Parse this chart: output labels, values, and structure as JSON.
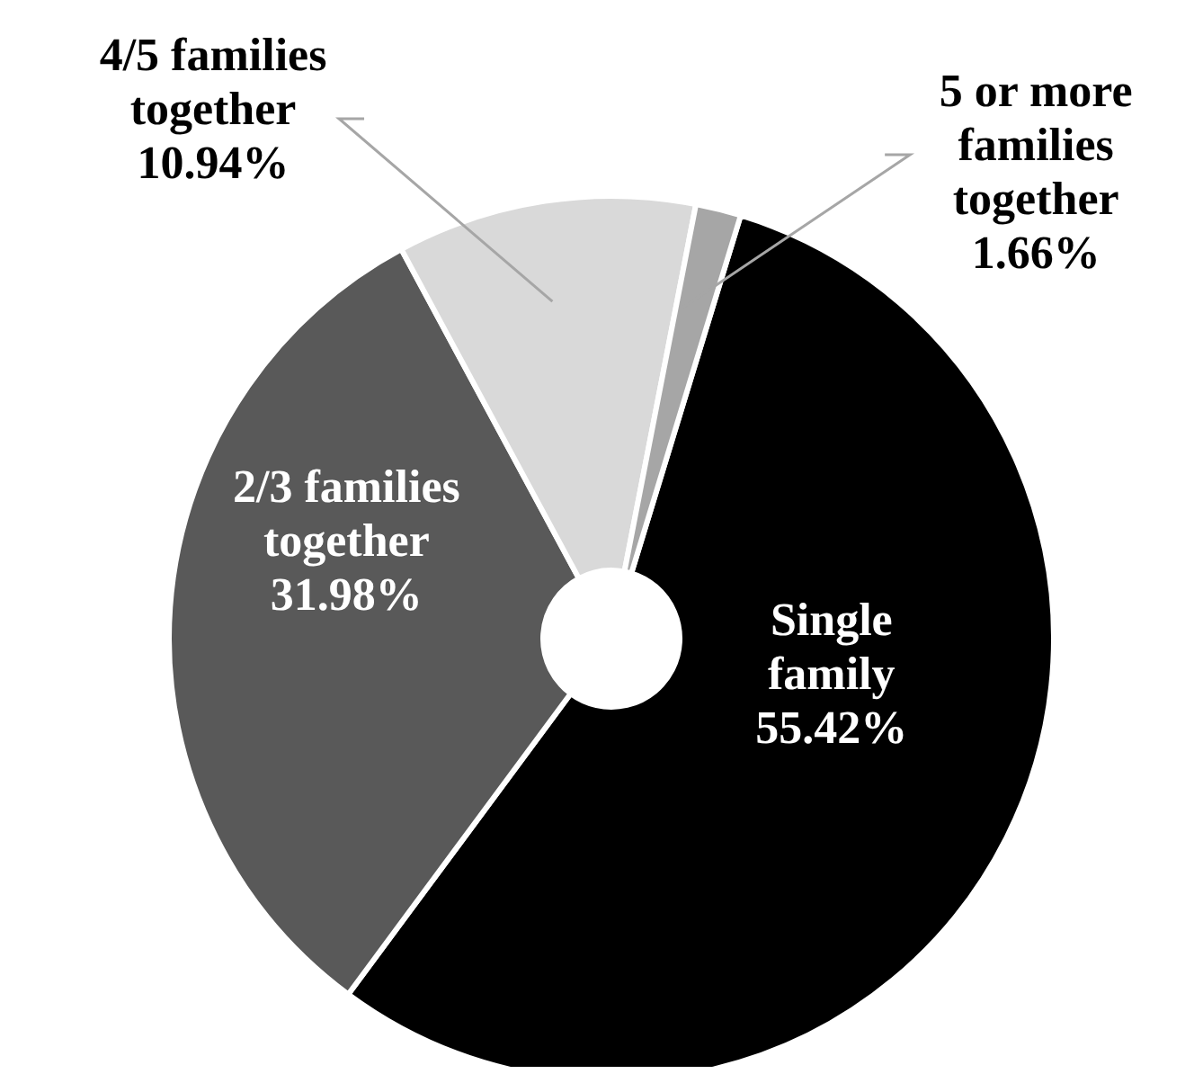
{
  "chart_data": {
    "type": "donut",
    "categories": [
      "Single family",
      "2/3 families together",
      "4/5 families together",
      "5 or more families together"
    ],
    "values": [
      55.42,
      31.98,
      10.94,
      1.66
    ],
    "value_labels": [
      "55.42%",
      "31.98%",
      "10.94%",
      "1.66%"
    ],
    "colors": [
      "#000000",
      "#595959",
      "#d9d9d9",
      "#a6a6a6"
    ],
    "legend": false
  }
}
